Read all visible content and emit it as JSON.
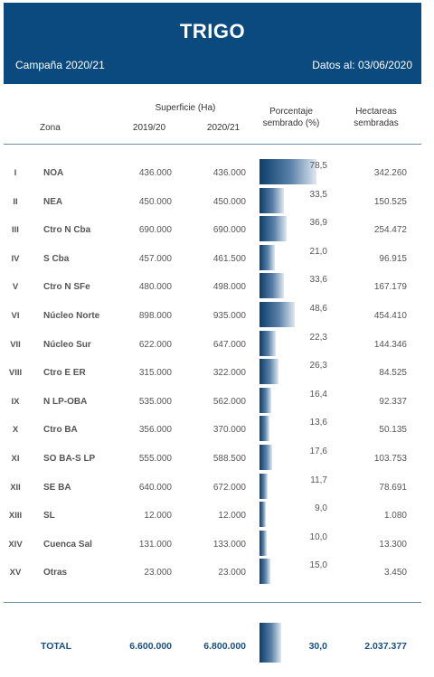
{
  "header": {
    "title": "TRIGO",
    "campaign": "Campaña 2020/21",
    "date": "Datos al: 03/06/2020"
  },
  "columns": {
    "zona": "Zona",
    "superficie": "Superficie (Ha)",
    "y1": "2019/20",
    "y2": "2020/21",
    "pct_line1": "Porcentaje",
    "pct_line2": "sembrado (%)",
    "ha_line1": "Hectareas",
    "ha_line2": "sembradas"
  },
  "colors": {
    "header_bg": "#0b4a7e",
    "bar_dark": "#0b3d6c",
    "bar_light": "#dfe8f0",
    "total_text": "#1a4f82"
  },
  "chart_data": {
    "type": "bar",
    "title": "TRIGO",
    "categories": [
      "NOA",
      "NEA",
      "Ctro N Cba",
      "S Cba",
      "Ctro N SFe",
      "Núcleo Norte",
      "Núcleo Sur",
      "Ctro E ER",
      "N LP-OBA",
      "Ctro BA",
      "SO BA-S LP",
      "SE BA",
      "SL",
      "Cuenca Sal",
      "Otras"
    ],
    "values": [
      78.5,
      33.5,
      36.9,
      21.0,
      33.6,
      48.6,
      22.3,
      26.3,
      16.4,
      13.6,
      17.6,
      11.7,
      9.0,
      10.0,
      15.0
    ],
    "ylim": [
      0,
      100
    ],
    "total_value": 30.0
  },
  "rows": [
    {
      "num": "I",
      "zona": "NOA",
      "s1": "436.000",
      "s2": "436.000",
      "pct": "78,5",
      "ha": "342.260"
    },
    {
      "num": "II",
      "zona": "NEA",
      "s1": "450.000",
      "s2": "450.000",
      "pct": "33,5",
      "ha": "150.525"
    },
    {
      "num": "III",
      "zona": "Ctro N Cba",
      "s1": "690.000",
      "s2": "690.000",
      "pct": "36,9",
      "ha": "254.472"
    },
    {
      "num": "IV",
      "zona": "S Cba",
      "s1": "457.000",
      "s2": "461.500",
      "pct": "21,0",
      "ha": "96.915"
    },
    {
      "num": "V",
      "zona": "Ctro N SFe",
      "s1": "480.000",
      "s2": "498.000",
      "pct": "33,6",
      "ha": "167.179"
    },
    {
      "num": "VI",
      "zona": "Núcleo Norte",
      "s1": "898.000",
      "s2": "935.000",
      "pct": "48,6",
      "ha": "454.410"
    },
    {
      "num": "VII",
      "zona": "Núcleo Sur",
      "s1": "622.000",
      "s2": "647.000",
      "pct": "22,3",
      "ha": "144.346"
    },
    {
      "num": "VIII",
      "zona": "Ctro E ER",
      "s1": "315.000",
      "s2": "322.000",
      "pct": "26,3",
      "ha": "84.525"
    },
    {
      "num": "IX",
      "zona": "N LP-OBA",
      "s1": "535.000",
      "s2": "562.000",
      "pct": "16,4",
      "ha": "92.337"
    },
    {
      "num": "X",
      "zona": "Ctro BA",
      "s1": "356.000",
      "s2": "370.000",
      "pct": "13,6",
      "ha": "50.135"
    },
    {
      "num": "XI",
      "zona": "SO BA-S LP",
      "s1": "555.000",
      "s2": "588.500",
      "pct": "17,6",
      "ha": "103.753"
    },
    {
      "num": "XII",
      "zona": "SE BA",
      "s1": "640.000",
      "s2": "672.000",
      "pct": "11,7",
      "ha": "78.691"
    },
    {
      "num": "XIII",
      "zona": "SL",
      "s1": "12.000",
      "s2": "12.000",
      "pct": "9,0",
      "ha": "1.080"
    },
    {
      "num": "XIV",
      "zona": "Cuenca Sal",
      "s1": "131.000",
      "s2": "133.000",
      "pct": "10,0",
      "ha": "13.300"
    },
    {
      "num": "XV",
      "zona": "Otras",
      "s1": "23.000",
      "s2": "23.000",
      "pct": "15,0",
      "ha": "3.450"
    }
  ],
  "total": {
    "label": "TOTAL",
    "s1": "6.600.000",
    "s2": "6.800.000",
    "pct": "30,0",
    "ha": "2.037.377"
  }
}
